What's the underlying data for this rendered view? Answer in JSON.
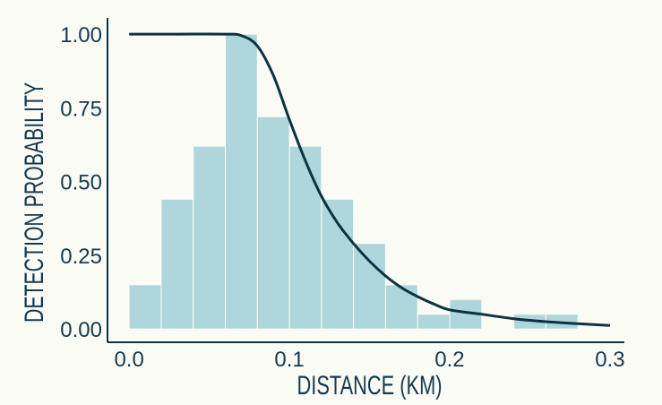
{
  "chart_data": {
    "type": "bar",
    "title": "",
    "xlabel": "DISTANCE (KM)",
    "ylabel": "DETECTION PROBABILITY",
    "xlim": [
      -0.0135,
      0.309
    ],
    "ylim": [
      -0.045,
      1.055
    ],
    "xticks": [
      0.0,
      0.1,
      0.2,
      0.3
    ],
    "xtick_labels": [
      "0.0",
      "0.1",
      "0.2",
      "0.3"
    ],
    "yticks": [
      0.0,
      0.25,
      0.5,
      0.75,
      1.0
    ],
    "ytick_labels": [
      "0.00",
      "0.25",
      "0.50",
      "0.75",
      "1.00"
    ],
    "grid": false,
    "bin_width": 0.02,
    "bin_starts": [
      0.0,
      0.02,
      0.04,
      0.06,
      0.08,
      0.1,
      0.12,
      0.14,
      0.16,
      0.18,
      0.2,
      0.22,
      0.24,
      0.26
    ],
    "values": [
      0.15,
      0.44,
      0.62,
      1.0,
      0.72,
      0.62,
      0.44,
      0.29,
      0.15,
      0.05,
      0.1,
      0.0,
      0.05,
      0.05
    ],
    "bar_color": "#aed6dc",
    "curve": {
      "type": "line",
      "color": "#0b3340",
      "x": [
        0.0,
        0.03,
        0.06,
        0.07,
        0.08,
        0.09,
        0.1,
        0.11,
        0.12,
        0.13,
        0.14,
        0.15,
        0.16,
        0.17,
        0.18,
        0.19,
        0.2,
        0.22,
        0.24,
        0.26,
        0.28,
        0.3
      ],
      "y": [
        1.0,
        1.0,
        1.0,
        0.995,
        0.96,
        0.86,
        0.71,
        0.57,
        0.45,
        0.36,
        0.29,
        0.23,
        0.18,
        0.14,
        0.11,
        0.085,
        0.065,
        0.05,
        0.035,
        0.025,
        0.018,
        0.012
      ]
    }
  }
}
